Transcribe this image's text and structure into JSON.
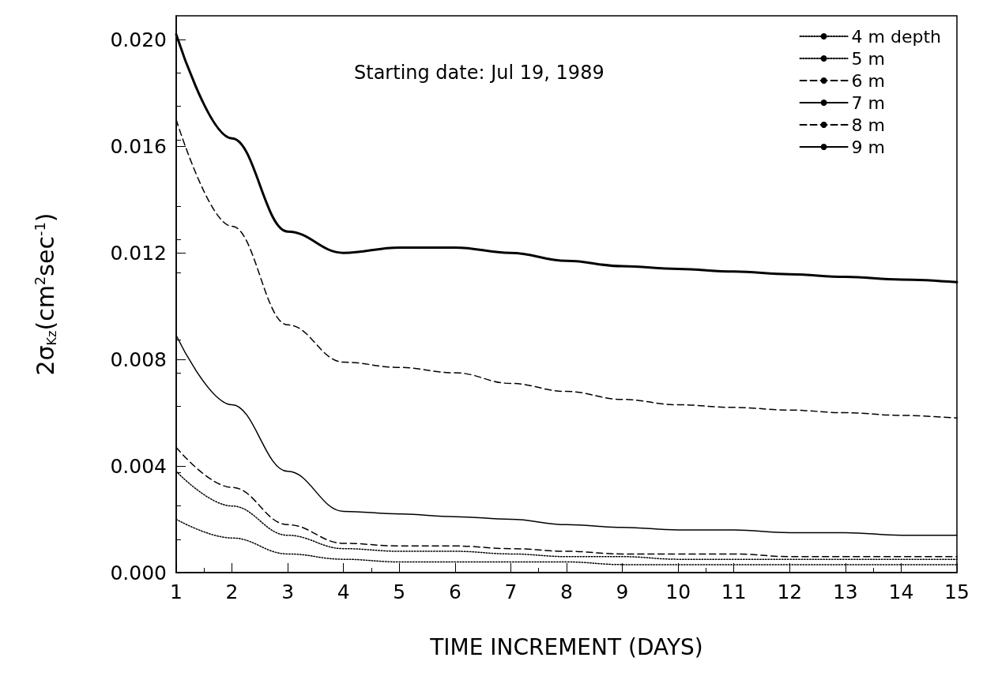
{
  "chart_data": {
    "type": "line",
    "xlabel": "TIME INCREMENT (DAYS)",
    "ylabel": "2σ$_{Kz}$(cm$^{2}$sec$^{-1}$)",
    "annotations": [
      "Starting date: Jul 19, 1989"
    ],
    "x": [
      1,
      2,
      3,
      4,
      5,
      6,
      7,
      8,
      9,
      10,
      11,
      12,
      13,
      14,
      15
    ],
    "series": [
      {
        "name": "4 m depth",
        "color": "#000000",
        "line_style": "dotted",
        "values": [
          0.002,
          0.0013,
          0.0007,
          0.0005,
          0.0004,
          0.0004,
          0.0004,
          0.0004,
          0.0003,
          0.0003,
          0.0003,
          0.0003,
          0.0003,
          0.0003,
          0.0003
        ]
      },
      {
        "name": "5 m",
        "color": "#000000",
        "line_style": "dotted",
        "values": [
          0.0038,
          0.0025,
          0.0014,
          0.0009,
          0.0008,
          0.0008,
          0.0007,
          0.0006,
          0.0006,
          0.0005,
          0.0005,
          0.0005,
          0.0005,
          0.0005,
          0.0005
        ]
      },
      {
        "name": "6 m",
        "color": "#000000",
        "line_style": "dashed",
        "values": [
          0.0047,
          0.0032,
          0.0018,
          0.0011,
          0.001,
          0.001,
          0.0009,
          0.0008,
          0.0007,
          0.0007,
          0.0007,
          0.0006,
          0.0006,
          0.0006,
          0.0006
        ]
      },
      {
        "name": "7 m",
        "color": "#000000",
        "line_style": "solid",
        "values": [
          0.0089,
          0.0063,
          0.0038,
          0.0023,
          0.0022,
          0.0021,
          0.002,
          0.0018,
          0.0017,
          0.0016,
          0.0016,
          0.0015,
          0.0015,
          0.0014,
          0.0014
        ]
      },
      {
        "name": "8 m",
        "color": "#000000",
        "line_style": "dashed",
        "values": [
          0.017,
          0.013,
          0.0093,
          0.0079,
          0.0077,
          0.0075,
          0.0071,
          0.0068,
          0.0065,
          0.0063,
          0.0062,
          0.0061,
          0.006,
          0.0059,
          0.0058
        ]
      },
      {
        "name": "9 m",
        "color": "#000000",
        "line_style": "solid",
        "values": [
          0.0202,
          0.0163,
          0.0128,
          0.012,
          0.0122,
          0.0122,
          0.012,
          0.0117,
          0.0115,
          0.0114,
          0.0113,
          0.0112,
          0.0111,
          0.011,
          0.0109
        ]
      }
    ],
    "xlim": [
      1,
      15
    ],
    "xticks": [
      1,
      2,
      3,
      4,
      5,
      6,
      7,
      8,
      9,
      10,
      11,
      12,
      13,
      14,
      15
    ],
    "ylim": [
      0,
      0.0209
    ],
    "yticks": [
      {
        "value": 0,
        "label": "0.000"
      },
      {
        "value": 0.004,
        "label": "0.004"
      },
      {
        "value": 0.008,
        "label": "0.008"
      },
      {
        "value": 0.012,
        "label": "0.012"
      },
      {
        "value": 0.016,
        "label": "0.016"
      },
      {
        "value": 0.02,
        "label": "0.020"
      }
    ],
    "grid": false,
    "legend": "top right",
    "marker": "none"
  }
}
